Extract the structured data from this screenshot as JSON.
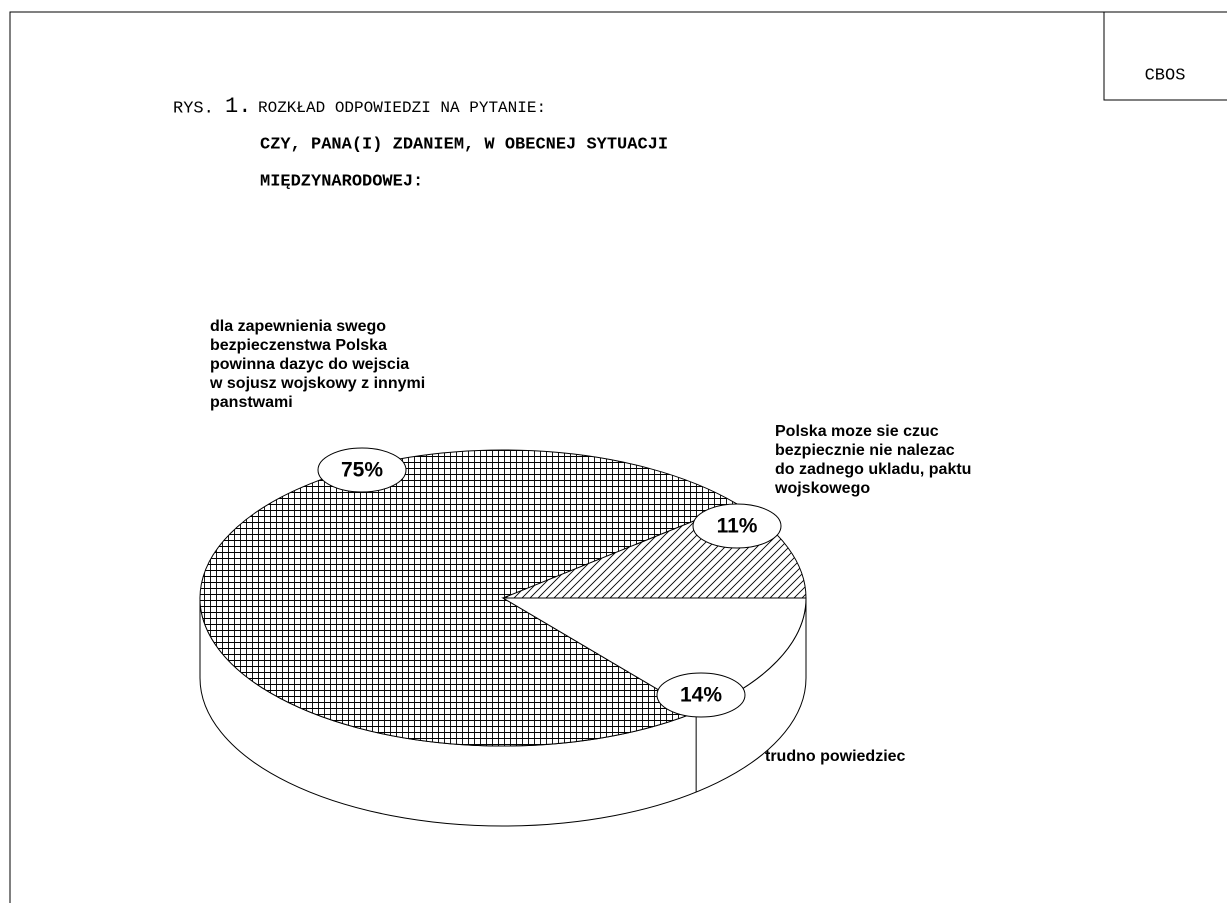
{
  "chart_data": {
    "type": "pie3d",
    "source": "CBOS",
    "title_prefix": "RYS.",
    "title_number": "1.",
    "title": "ROZKŁAD ODPOWIEDZI NA PYTANIE:",
    "subtitle": [
      "CZY, PANA(I) ZDANIEM, W OBECNEJ SYTUACJI",
      "MIĘDZYNARODOWEJ:"
    ],
    "categories": [
      [
        "Polska moze sie czuc",
        "bezpiecznie nie nalezac",
        "do zadnego ukladu, paktu",
        "wojskowego"
      ],
      [
        "dla zapewnienia swego",
        "bezpieczenstwa Polska",
        "powinna dazyc do wejscia",
        "w sojusz wojskowy z innymi",
        "panstwami"
      ],
      [
        "trudno powiedziec"
      ]
    ],
    "values": [
      11,
      75,
      14
    ],
    "value_labels": [
      "11%",
      "75%",
      "14%"
    ],
    "patterns": [
      "hatch",
      "grid",
      "none"
    ],
    "color": "#000000"
  }
}
